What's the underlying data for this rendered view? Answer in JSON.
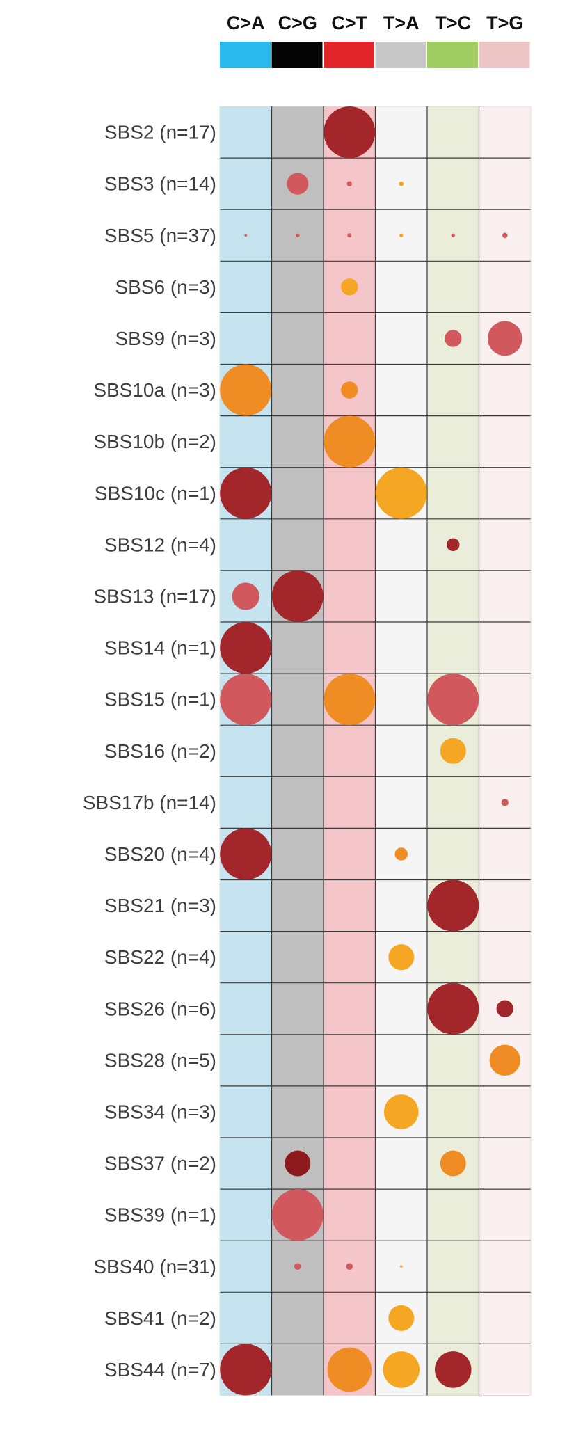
{
  "chart_data": {
    "type": "bubble-matrix",
    "columns": [
      {
        "label": "C>A",
        "color": "#29b9ec",
        "band_color": "#c5e4f0"
      },
      {
        "label": "C>G",
        "color": "#050505",
        "band_color": "#c0bfc0"
      },
      {
        "label": "C>T",
        "color": "#e2242b",
        "band_color": "#f4c5c9"
      },
      {
        "label": "T>A",
        "color": "#c8c8c8",
        "band_color": "#f5f5f5"
      },
      {
        "label": "T>C",
        "color": "#a1cc62",
        "band_color": "#e9edda"
      },
      {
        "label": "T>G",
        "color": "#ecc6c4",
        "band_color": "#fbf0f0"
      }
    ],
    "rows": [
      "SBS2 (n=17)",
      "SBS3 (n=14)",
      "SBS5 (n=37)",
      "SBS6 (n=3)",
      "SBS9 (n=3)",
      "SBS10a (n=3)",
      "SBS10b (n=2)",
      "SBS10c (n=1)",
      "SBS12 (n=4)",
      "SBS13 (n=17)",
      "SBS14 (n=1)",
      "SBS15 (n=1)",
      "SBS16 (n=2)",
      "SBS17b (n=14)",
      "SBS20 (n=4)",
      "SBS21 (n=3)",
      "SBS22 (n=4)",
      "SBS26 (n=6)",
      "SBS28 (n=5)",
      "SBS34 (n=3)",
      "SBS37 (n=2)",
      "SBS39 (n=1)",
      "SBS40 (n=31)",
      "SBS41 (n=2)",
      "SBS44 (n=7)"
    ],
    "bubble_colors": {
      "dark_red": "#a3262b",
      "deep_red": "#8c1a1c",
      "light_red": "#d1585c",
      "orange": "#f08c24",
      "yellow_orange": "#f5a623"
    },
    "bubbles": [
      {
        "row": 0,
        "col": 2,
        "size": 1.0,
        "color": "dark_red"
      },
      {
        "row": 1,
        "col": 1,
        "size": 0.42,
        "color": "light_red"
      },
      {
        "row": 1,
        "col": 2,
        "size": 0.1,
        "color": "light_red"
      },
      {
        "row": 1,
        "col": 3,
        "size": 0.09,
        "color": "yellow_orange"
      },
      {
        "row": 2,
        "col": 0,
        "size": 0.05,
        "color": "light_red"
      },
      {
        "row": 2,
        "col": 1,
        "size": 0.07,
        "color": "light_red"
      },
      {
        "row": 2,
        "col": 2,
        "size": 0.08,
        "color": "light_red"
      },
      {
        "row": 2,
        "col": 3,
        "size": 0.07,
        "color": "yellow_orange"
      },
      {
        "row": 2,
        "col": 4,
        "size": 0.07,
        "color": "light_red"
      },
      {
        "row": 2,
        "col": 5,
        "size": 0.1,
        "color": "light_red"
      },
      {
        "row": 3,
        "col": 2,
        "size": 0.33,
        "color": "yellow_orange"
      },
      {
        "row": 4,
        "col": 4,
        "size": 0.33,
        "color": "light_red"
      },
      {
        "row": 4,
        "col": 5,
        "size": 0.67,
        "color": "light_red"
      },
      {
        "row": 5,
        "col": 0,
        "size": 1.0,
        "color": "orange"
      },
      {
        "row": 5,
        "col": 2,
        "size": 0.33,
        "color": "orange"
      },
      {
        "row": 6,
        "col": 2,
        "size": 1.0,
        "color": "orange"
      },
      {
        "row": 7,
        "col": 0,
        "size": 1.0,
        "color": "dark_red"
      },
      {
        "row": 7,
        "col": 3,
        "size": 1.0,
        "color": "yellow_orange"
      },
      {
        "row": 8,
        "col": 4,
        "size": 0.25,
        "color": "dark_red"
      },
      {
        "row": 9,
        "col": 0,
        "size": 0.53,
        "color": "light_red"
      },
      {
        "row": 9,
        "col": 1,
        "size": 1.0,
        "color": "dark_red"
      },
      {
        "row": 10,
        "col": 0,
        "size": 1.0,
        "color": "dark_red"
      },
      {
        "row": 11,
        "col": 0,
        "size": 1.0,
        "color": "light_red"
      },
      {
        "row": 11,
        "col": 2,
        "size": 1.0,
        "color": "orange"
      },
      {
        "row": 11,
        "col": 4,
        "size": 1.0,
        "color": "light_red"
      },
      {
        "row": 12,
        "col": 4,
        "size": 0.5,
        "color": "yellow_orange"
      },
      {
        "row": 13,
        "col": 5,
        "size": 0.14,
        "color": "light_red"
      },
      {
        "row": 14,
        "col": 0,
        "size": 1.0,
        "color": "dark_red"
      },
      {
        "row": 14,
        "col": 3,
        "size": 0.25,
        "color": "orange"
      },
      {
        "row": 15,
        "col": 4,
        "size": 1.0,
        "color": "dark_red"
      },
      {
        "row": 16,
        "col": 3,
        "size": 0.5,
        "color": "yellow_orange"
      },
      {
        "row": 17,
        "col": 4,
        "size": 1.0,
        "color": "dark_red"
      },
      {
        "row": 17,
        "col": 5,
        "size": 0.33,
        "color": "dark_red"
      },
      {
        "row": 18,
        "col": 5,
        "size": 0.6,
        "color": "orange"
      },
      {
        "row": 19,
        "col": 3,
        "size": 0.67,
        "color": "yellow_orange"
      },
      {
        "row": 20,
        "col": 1,
        "size": 0.5,
        "color": "deep_red"
      },
      {
        "row": 20,
        "col": 4,
        "size": 0.5,
        "color": "orange"
      },
      {
        "row": 21,
        "col": 1,
        "size": 1.0,
        "color": "light_red"
      },
      {
        "row": 22,
        "col": 1,
        "size": 0.13,
        "color": "light_red"
      },
      {
        "row": 22,
        "col": 2,
        "size": 0.13,
        "color": "light_red"
      },
      {
        "row": 22,
        "col": 3,
        "size": 0.05,
        "color": "yellow_orange"
      },
      {
        "row": 23,
        "col": 3,
        "size": 0.5,
        "color": "yellow_orange"
      },
      {
        "row": 24,
        "col": 0,
        "size": 1.0,
        "color": "dark_red"
      },
      {
        "row": 24,
        "col": 2,
        "size": 0.86,
        "color": "orange"
      },
      {
        "row": 24,
        "col": 3,
        "size": 0.71,
        "color": "yellow_orange"
      },
      {
        "row": 24,
        "col": 4,
        "size": 0.71,
        "color": "dark_red"
      }
    ],
    "grid_line_color": "#3a3a3a"
  }
}
